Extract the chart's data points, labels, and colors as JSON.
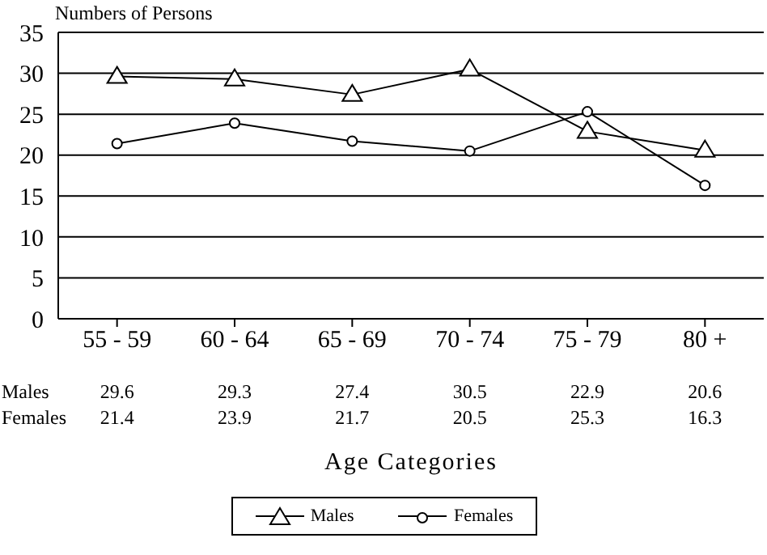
{
  "chart_data": {
    "type": "line",
    "ylabel": "Numbers of Persons",
    "xlabel": "Age Categories",
    "categories": [
      "55 - 59",
      "60 - 64",
      "65 - 69",
      "70 - 74",
      "75 - 79",
      "80 +"
    ],
    "series": [
      {
        "name": "Males",
        "color": "#000000",
        "marker": "triangle",
        "values": [
          29.6,
          29.3,
          27.4,
          30.5,
          22.9,
          20.6
        ]
      },
      {
        "name": "Females",
        "color": "#000000",
        "marker": "circle",
        "values": [
          21.4,
          23.9,
          21.7,
          20.5,
          25.3,
          16.3
        ]
      }
    ],
    "ylim": [
      0,
      35
    ],
    "yticks": [
      0,
      5,
      10,
      15,
      20,
      25,
      30,
      35
    ],
    "grid": "y",
    "legend": "bottom",
    "data_labels": true,
    "line_style": "solid"
  }
}
